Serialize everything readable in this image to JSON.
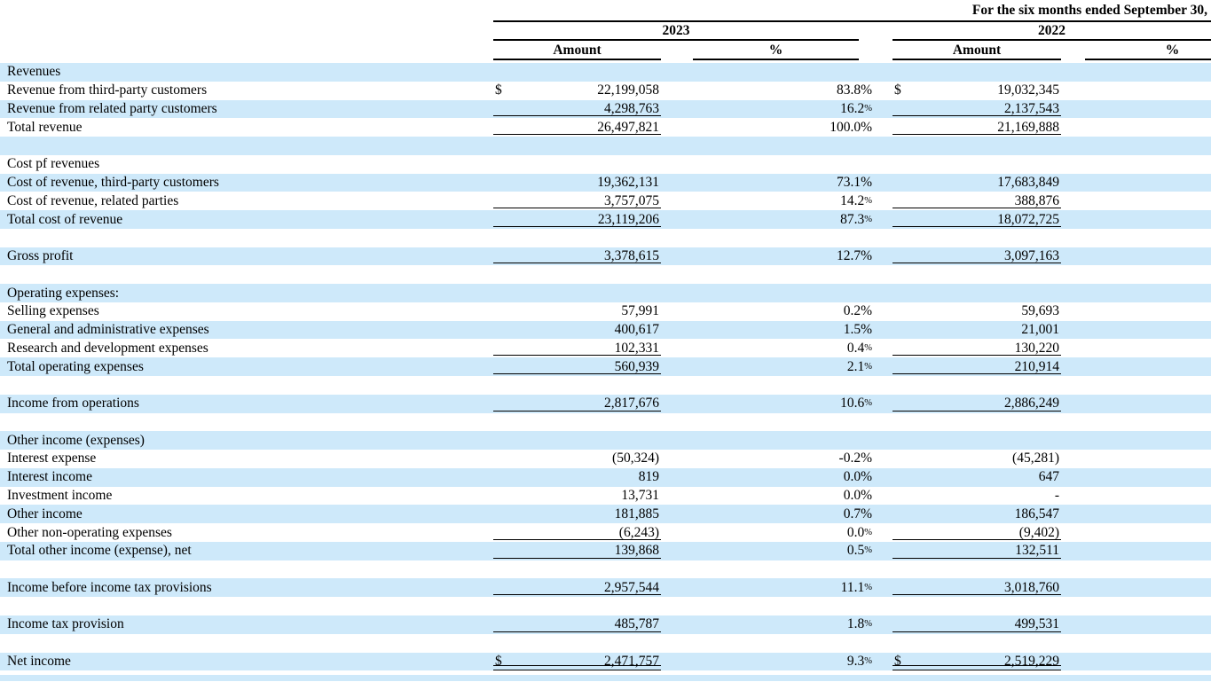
{
  "colors": {
    "row_stripe_blue": "#cee9fa",
    "row_white": "#ffffff",
    "rule_black": "#000000"
  },
  "header": {
    "title": "For the six months ended September 30,",
    "year_left": "2023",
    "year_right": "2022",
    "col_amount_left": "Amount",
    "col_pct_left": "%",
    "col_amount_right": "Amount",
    "col_pct_right": "%"
  },
  "table": {
    "rows": [
      {
        "label": "Revenues"
      },
      {
        "label": "Revenue from third-party customers",
        "dollar_sign": true,
        "amount_2023": "22,199,058",
        "pct_2023": "83.8%",
        "amount_2022": "19,032,345"
      },
      {
        "label": "Revenue from related party customers",
        "amount_2023": "4,298,763",
        "pct_2023": "16.2%",
        "pct_superscript": true,
        "amount_2022": "2,137,543",
        "underline": "single"
      },
      {
        "label": "Total revenue",
        "amount_2023": "26,497,821",
        "pct_2023": "100.0%",
        "amount_2022": "21,169,888",
        "underline": "single"
      },
      {
        "blank": true
      },
      {
        "label": "Cost pf revenues"
      },
      {
        "label": "Cost of revenue, third-party customers",
        "amount_2023": "19,362,131",
        "pct_2023": "73.1%",
        "amount_2022": "17,683,849"
      },
      {
        "label": "Cost of revenue, related parties",
        "amount_2023": "3,757,075",
        "pct_2023": "14.2%",
        "pct_superscript": true,
        "amount_2022": "388,876",
        "underline": "single"
      },
      {
        "label": "Total cost of revenue",
        "amount_2023": "23,119,206",
        "pct_2023": "87.3%",
        "pct_superscript": true,
        "amount_2022": "18,072,725",
        "underline": "single"
      },
      {
        "blank": true
      },
      {
        "label": "Gross profit",
        "amount_2023": "3,378,615",
        "pct_2023": "12.7%",
        "amount_2022": "3,097,163",
        "underline": "single"
      },
      {
        "blank": true
      },
      {
        "label": "Operating expenses:"
      },
      {
        "label": "Selling expenses",
        "amount_2023": "57,991",
        "pct_2023": "0.2%",
        "amount_2022": "59,693"
      },
      {
        "label": "General and administrative expenses",
        "amount_2023": "400,617",
        "pct_2023": "1.5%",
        "amount_2022": "21,001"
      },
      {
        "label": "Research and development expenses",
        "amount_2023": "102,331",
        "pct_2023": "0.4%",
        "pct_superscript": true,
        "amount_2022": "130,220",
        "underline": "single"
      },
      {
        "label": "Total operating expenses",
        "amount_2023": "560,939",
        "pct_2023": "2.1%",
        "pct_superscript": true,
        "amount_2022": "210,914",
        "underline": "single"
      },
      {
        "blank": true
      },
      {
        "label": "Income from operations",
        "amount_2023": "2,817,676",
        "pct_2023": "10.6%",
        "pct_superscript": true,
        "amount_2022": "2,886,249",
        "underline": "single"
      },
      {
        "blank": true
      },
      {
        "label": "Other income (expenses)"
      },
      {
        "label": "Interest expense",
        "amount_2023": "(50,324)",
        "pct_2023": "-0.2%",
        "amount_2022": "(45,281)"
      },
      {
        "label": "Interest income",
        "amount_2023": "819",
        "pct_2023": "0.0%",
        "amount_2022": "647"
      },
      {
        "label": "Investment income",
        "amount_2023": "13,731",
        "pct_2023": "0.0%",
        "amount_2022": "-"
      },
      {
        "label": "Other income",
        "amount_2023": "181,885",
        "pct_2023": "0.7%",
        "amount_2022": "186,547"
      },
      {
        "label": "Other non-operating expenses",
        "amount_2023": "(6,243)",
        "pct_2023": "0.0%",
        "pct_superscript": true,
        "amount_2022": "(9,402)",
        "underline": "single"
      },
      {
        "label": "Total other income (expense), net",
        "amount_2023": "139,868",
        "pct_2023": "0.5%",
        "pct_superscript": true,
        "amount_2022": "132,511",
        "underline": "single"
      },
      {
        "blank": true
      },
      {
        "label": "Income before income tax provisions",
        "amount_2023": "2,957,544",
        "pct_2023": "11.1%",
        "pct_superscript": true,
        "amount_2022": "3,018,760",
        "underline": "single"
      },
      {
        "blank": true
      },
      {
        "label": "Income tax provision",
        "amount_2023": "485,787",
        "pct_2023": "1.8%",
        "pct_superscript": true,
        "amount_2022": "499,531",
        "underline": "single"
      },
      {
        "blank": true
      },
      {
        "label": "Net income",
        "dollar_sign": true,
        "amount_2023": "2,471,757",
        "pct_2023": "9.3%",
        "pct_superscript": true,
        "amount_2022": "2,519,229",
        "underline": "double"
      }
    ]
  }
}
